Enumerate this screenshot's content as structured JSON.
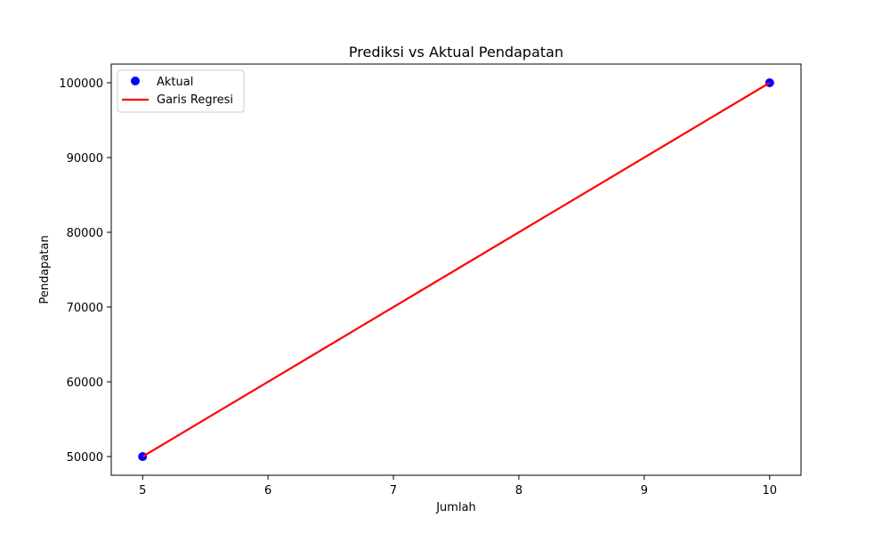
{
  "chart_data": {
    "type": "scatter",
    "title": "Prediksi vs Aktual Pendapatan",
    "xlabel": "Jumlah",
    "ylabel": "Pendapatan",
    "xlim": [
      4.75,
      10.25
    ],
    "ylim": [
      47500,
      102500
    ],
    "x_ticks": [
      5,
      6,
      7,
      8,
      9,
      10
    ],
    "y_ticks": [
      50000,
      60000,
      70000,
      80000,
      90000,
      100000
    ],
    "x_tick_labels": [
      "5",
      "6",
      "7",
      "8",
      "9",
      "10"
    ],
    "y_tick_labels": [
      "50000",
      "60000",
      "70000",
      "80000",
      "90000",
      "100000"
    ],
    "grid": false,
    "legend_position": "top-left",
    "series": [
      {
        "name": "Aktual",
        "kind": "scatter",
        "color": "#0000ff",
        "x": [
          5,
          10
        ],
        "y": [
          50000,
          100000
        ]
      },
      {
        "name": "Garis Regresi",
        "kind": "line",
        "color": "#ff0000",
        "x": [
          5,
          10
        ],
        "y": [
          50000,
          100000
        ]
      }
    ]
  }
}
